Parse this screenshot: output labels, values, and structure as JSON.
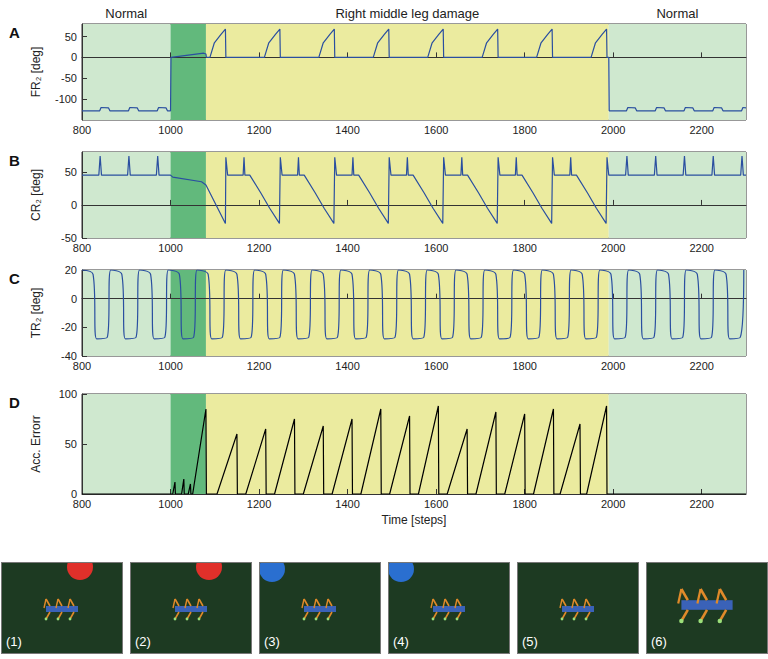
{
  "chart_data": [
    {
      "type": "line",
      "panel_label": "A",
      "y_label": "FR₂ [deg]",
      "color": "#2a4fa0",
      "line_style": "solid",
      "grid": false,
      "xlim": [
        800,
        2300
      ],
      "xticks": [
        800,
        1000,
        1200,
        1400,
        1600,
        1800,
        2000,
        2200
      ],
      "ylim": [
        -150,
        80
      ],
      "yticks": [
        -100,
        -50,
        0,
        50
      ],
      "x": [
        800,
        840,
        843,
        860,
        863,
        905,
        908,
        925,
        928,
        970,
        973,
        990,
        993,
        1000,
        1001,
        1075,
        1080,
        1081,
        1089,
        1099,
        1114,
        1124,
        1125,
        1212,
        1222,
        1237,
        1247,
        1248,
        1335,
        1345,
        1360,
        1370,
        1371,
        1458,
        1468,
        1483,
        1493,
        1494,
        1581,
        1591,
        1606,
        1616,
        1617,
        1704,
        1714,
        1729,
        1739,
        1740,
        1827,
        1837,
        1852,
        1862,
        1863,
        1950,
        1960,
        1975,
        1985,
        1986,
        1990,
        1991,
        2030,
        2033,
        2050,
        2053,
        2095,
        2098,
        2115,
        2118,
        2160,
        2163,
        2180,
        2183,
        2225,
        2228,
        2245,
        2248,
        2290,
        2293,
        2300
      ],
      "values": [
        -128,
        -128,
        -120,
        -121,
        -128,
        -128,
        -120,
        -121,
        -128,
        -128,
        -120,
        -121,
        -128,
        -128,
        0,
        10,
        8,
        0,
        0,
        35,
        55,
        68,
        0,
        0,
        35,
        55,
        68,
        0,
        0,
        35,
        55,
        68,
        0,
        0,
        35,
        55,
        68,
        0,
        0,
        35,
        55,
        68,
        0,
        0,
        35,
        55,
        68,
        0,
        0,
        35,
        55,
        68,
        0,
        0,
        35,
        55,
        68,
        0,
        0,
        -128,
        -128,
        -120,
        -121,
        -128,
        -128,
        -120,
        -121,
        -128,
        -128,
        -120,
        -121,
        -128,
        -128,
        -120,
        -121,
        -128,
        -128,
        -120,
        -121
      ]
    },
    {
      "type": "line",
      "panel_label": "B",
      "y_label": "CR₂ [deg]",
      "color": "#2a4fa0",
      "line_style": "solid",
      "grid": false,
      "xlim": [
        800,
        2300
      ],
      "xticks": [
        800,
        1000,
        1200,
        1400,
        1600,
        1800,
        2000,
        2200
      ],
      "ylim": [
        -50,
        80
      ],
      "yticks": [
        -50,
        0,
        50
      ],
      "x": [
        800,
        838,
        841,
        844,
        903,
        906,
        909,
        968,
        971,
        974,
        1000,
        1005,
        1070,
        1080,
        1124,
        1125,
        1129,
        1164,
        1166,
        1168,
        1179,
        1204,
        1224,
        1246,
        1247,
        1248,
        1252,
        1287,
        1289,
        1291,
        1302,
        1327,
        1347,
        1369,
        1370,
        1371,
        1375,
        1410,
        1412,
        1414,
        1425,
        1450,
        1470,
        1492,
        1493,
        1494,
        1498,
        1533,
        1535,
        1537,
        1548,
        1573,
        1593,
        1615,
        1616,
        1617,
        1621,
        1656,
        1658,
        1660,
        1671,
        1696,
        1716,
        1738,
        1739,
        1740,
        1744,
        1779,
        1781,
        1783,
        1794,
        1819,
        1839,
        1861,
        1862,
        1863,
        1867,
        1902,
        1904,
        1906,
        1917,
        1942,
        1962,
        1984,
        1985,
        1986,
        1990,
        2028,
        2031,
        2034,
        2093,
        2096,
        2099,
        2158,
        2161,
        2164,
        2223,
        2226,
        2229,
        2288,
        2291,
        2294,
        2300
      ],
      "values": [
        45,
        45,
        74,
        45,
        45,
        74,
        45,
        45,
        74,
        45,
        45,
        42,
        35,
        30,
        -28,
        72,
        45,
        45,
        72,
        45,
        45,
        18,
        -5,
        -28,
        -28,
        72,
        45,
        45,
        72,
        45,
        45,
        18,
        -5,
        -28,
        -28,
        72,
        45,
        45,
        72,
        45,
        45,
        18,
        -5,
        -28,
        -28,
        72,
        45,
        45,
        72,
        45,
        45,
        18,
        -5,
        -28,
        -28,
        72,
        45,
        45,
        72,
        45,
        45,
        18,
        -5,
        -28,
        -28,
        72,
        45,
        45,
        72,
        45,
        45,
        18,
        -5,
        -28,
        -28,
        72,
        45,
        45,
        72,
        45,
        45,
        18,
        -5,
        -28,
        -28,
        72,
        45,
        45,
        74,
        45,
        45,
        74,
        45,
        45,
        74,
        45,
        45,
        74,
        45,
        45,
        74,
        45,
        45
      ]
    },
    {
      "type": "line",
      "panel_label": "C",
      "y_label": "TR₂ [deg]",
      "color": "#2a4fa0",
      "line_style": "smooth",
      "grid": false,
      "xlim": [
        800,
        2300
      ],
      "xticks": [
        800,
        1000,
        1200,
        1400,
        1600,
        1800,
        2000,
        2200
      ],
      "ylim": [
        -40,
        20
      ],
      "yticks": [
        -40,
        -20,
        0,
        20
      ],
      "x": [
        800,
        825,
        833,
        857,
        865,
        890,
        898,
        922,
        930,
        955,
        963,
        987,
        995,
        1020,
        1028,
        1052,
        1060,
        1085,
        1093,
        1117,
        1125,
        1150,
        1158,
        1182,
        1190,
        1215,
        1223,
        1247,
        1255,
        1280,
        1288,
        1312,
        1320,
        1345,
        1353,
        1377,
        1385,
        1410,
        1418,
        1442,
        1450,
        1475,
        1483,
        1507,
        1515,
        1540,
        1548,
        1572,
        1580,
        1605,
        1613,
        1637,
        1645,
        1670,
        1678,
        1702,
        1710,
        1735,
        1743,
        1767,
        1775,
        1800,
        1808,
        1832,
        1840,
        1865,
        1873,
        1897,
        1905,
        1930,
        1938,
        1962,
        1970,
        1995,
        2003,
        2027,
        2035,
        2060,
        2068,
        2092,
        2100,
        2125,
        2133,
        2157,
        2165,
        2190,
        2198,
        2222,
        2230,
        2255,
        2263,
        2287,
        2295
      ],
      "values": [
        20,
        17,
        -28,
        -27,
        20,
        17,
        -28,
        -27,
        20,
        17,
        -28,
        -27,
        20,
        17,
        -28,
        -27,
        20,
        17,
        -28,
        -27,
        20,
        17,
        -28,
        -27,
        20,
        17,
        -28,
        -27,
        20,
        17,
        -28,
        -27,
        20,
        17,
        -28,
        -27,
        20,
        17,
        -28,
        -27,
        20,
        17,
        -28,
        -27,
        20,
        17,
        -28,
        -27,
        20,
        17,
        -28,
        -27,
        20,
        17,
        -28,
        -27,
        20,
        17,
        -28,
        -27,
        20,
        17,
        -28,
        -27,
        20,
        17,
        -28,
        -27,
        20,
        17,
        -28,
        -27,
        20,
        17,
        -28,
        -27,
        20,
        17,
        -28,
        -27,
        20,
        17,
        -28,
        -27,
        20,
        17,
        -28,
        -27,
        20,
        17,
        -28,
        -27,
        20
      ]
    },
    {
      "type": "line",
      "panel_label": "D",
      "y_label": "Acc. Errorr",
      "x_label": "Time [steps]",
      "color": "#000000",
      "line_style": "solid",
      "grid": false,
      "xlim": [
        800,
        2300
      ],
      "xticks": [
        800,
        1000,
        1200,
        1400,
        1600,
        1800,
        2000,
        2200
      ],
      "ylim": [
        0,
        100
      ],
      "yticks": [
        0,
        50,
        100
      ],
      "x": [
        800,
        1000,
        1005,
        1010,
        1011,
        1025,
        1030,
        1031,
        1040,
        1045,
        1046,
        1050,
        1080,
        1081,
        1105,
        1150,
        1151,
        1170,
        1215,
        1216,
        1235,
        1280,
        1281,
        1300,
        1345,
        1346,
        1365,
        1410,
        1411,
        1430,
        1475,
        1476,
        1495,
        1540,
        1541,
        1560,
        1605,
        1606,
        1625,
        1670,
        1671,
        1690,
        1735,
        1736,
        1755,
        1800,
        1801,
        1820,
        1865,
        1866,
        1880,
        1925,
        1926,
        1940,
        1985,
        1986,
        2300
      ],
      "values": [
        0,
        0,
        0,
        12,
        0,
        0,
        15,
        0,
        0,
        10,
        0,
        0,
        85,
        0,
        0,
        60,
        0,
        0,
        65,
        0,
        0,
        75,
        0,
        0,
        68,
        0,
        0,
        75,
        0,
        0,
        85,
        0,
        0,
        78,
        0,
        0,
        88,
        0,
        0,
        65,
        0,
        0,
        82,
        0,
        0,
        80,
        0,
        0,
        85,
        0,
        0,
        70,
        0,
        0,
        88,
        0,
        0
      ]
    }
  ],
  "regions": [
    {
      "start": 800,
      "end": 1000,
      "color": "#cfe8cf",
      "label": "Normal"
    },
    {
      "start": 1000,
      "end": 1080,
      "color": "#62b97c"
    },
    {
      "start": 1080,
      "end": 1990,
      "color": "#ebeb9f",
      "label": "Right middle leg damage"
    },
    {
      "start": 1990,
      "end": 2300,
      "color": "#cfe8cf",
      "label": "Normal"
    }
  ],
  "panels": [
    "(1)",
    "(2)",
    "(3)",
    "(4)",
    "(5)",
    "(6)"
  ]
}
